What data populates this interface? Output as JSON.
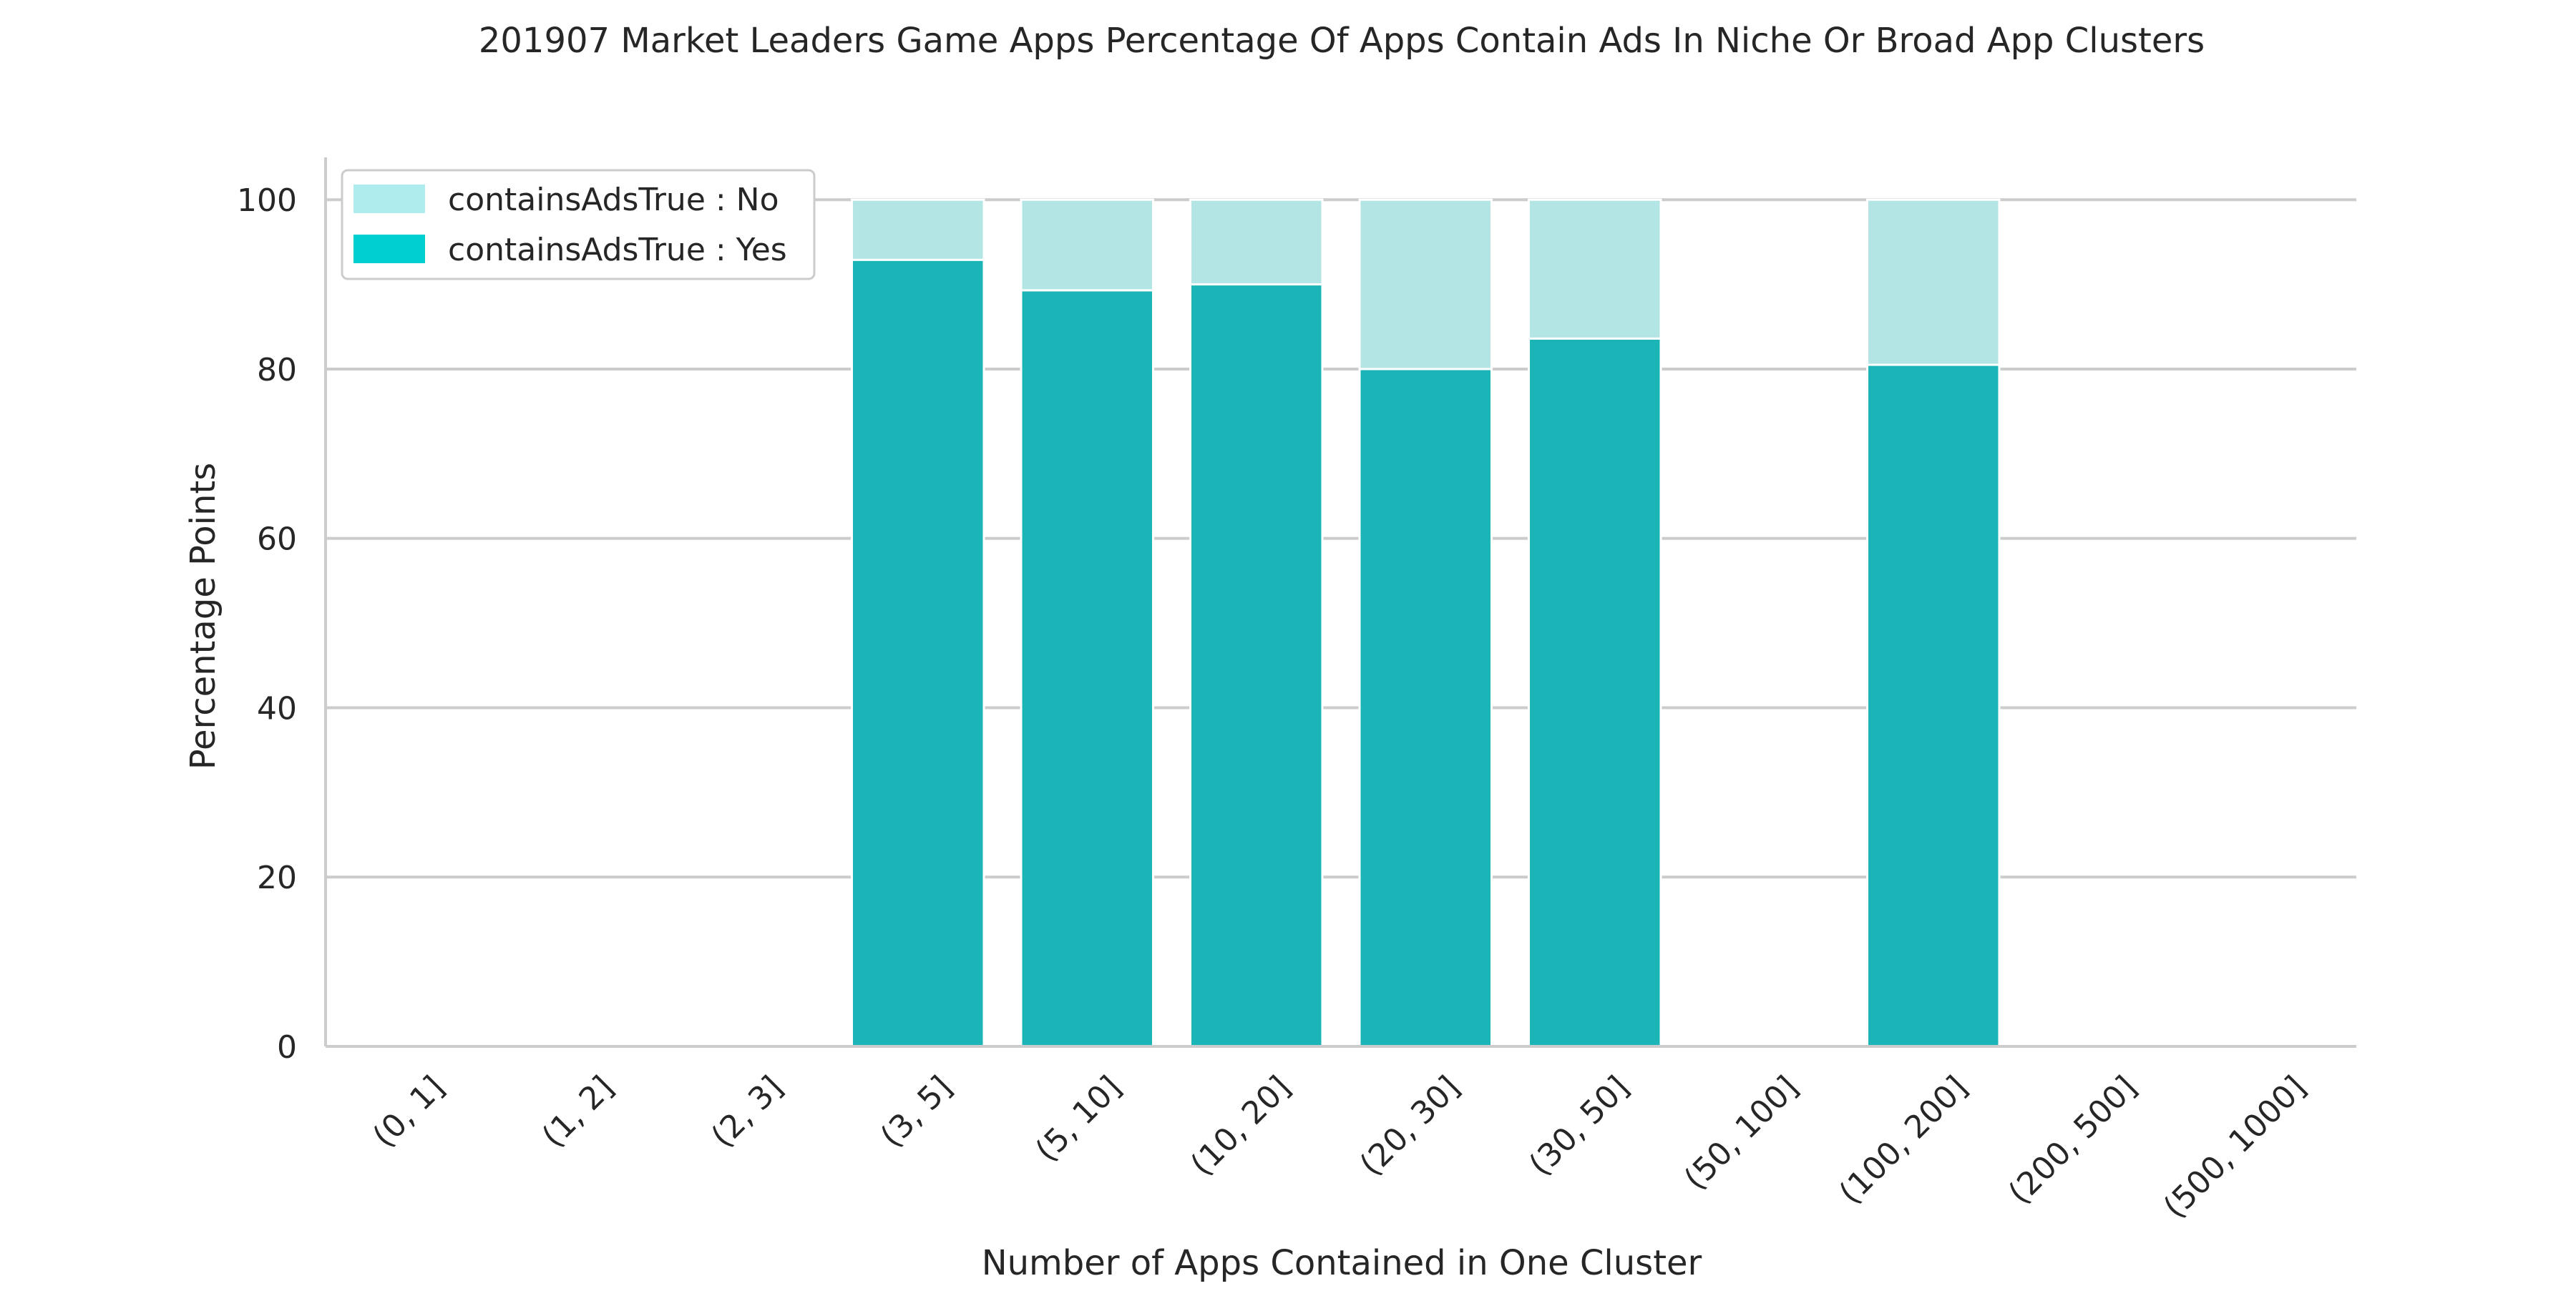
{
  "chart_data": {
    "type": "bar",
    "stacked": true,
    "title": "201907 Market Leaders Game Apps Percentage Of Apps Contain Ads In Niche Or Broad App Clusters",
    "xlabel": "Number of Apps Contained in One Cluster",
    "ylabel": "Percentage Points",
    "ylim": [
      0,
      105
    ],
    "yticks": [
      0,
      20,
      40,
      60,
      80,
      100
    ],
    "grid": "horizontal",
    "legend_position": "top-left",
    "categories": [
      "(0, 1]",
      "(1, 2]",
      "(2, 3]",
      "(3, 5]",
      "(5, 10]",
      "(10, 20]",
      "(20, 30]",
      "(30, 50]",
      "(50, 100]",
      "(100, 200]",
      "(200, 500]",
      "(500, 1000]"
    ],
    "series": [
      {
        "name": "containsAdsTrue : Yes",
        "color": "#1bb5b7",
        "legend_color": "#00cfd1",
        "values": [
          null,
          null,
          null,
          92.9,
          89.3,
          90.0,
          80.0,
          83.6,
          null,
          80.5,
          null,
          null
        ]
      },
      {
        "name": "containsAdsTrue : No",
        "color": "#b4e5e5",
        "legend_color": "#aeeced",
        "values": [
          null,
          null,
          null,
          7.1,
          10.7,
          10.0,
          20.0,
          16.4,
          null,
          19.5,
          null,
          null
        ]
      }
    ],
    "legend_order": [
      "containsAdsTrue : No",
      "containsAdsTrue : Yes"
    ]
  }
}
